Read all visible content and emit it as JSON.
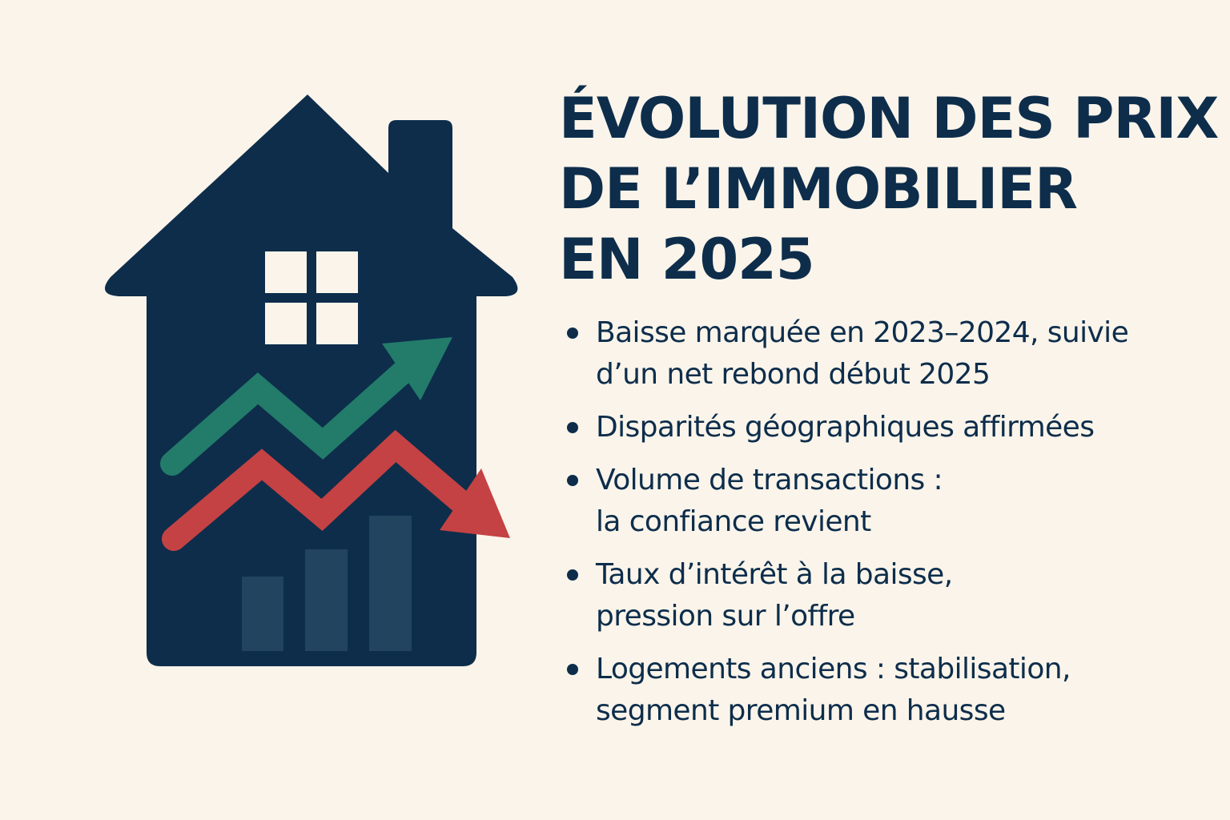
{
  "title": {
    "line1": "ÉVOLUTION DES PRIX",
    "line2": "DE L’IMMOBILIER",
    "line3": "EN 2025"
  },
  "bullets": [
    {
      "line1": "Baisse marquée en 2023–2024, suivie",
      "line2": "d’un net rebond début 2025"
    },
    {
      "line1": "Disparités géographiques affirmées",
      "line2": ""
    },
    {
      "line1": "Volume de transactions :",
      "line2": "la confiance revient"
    },
    {
      "line1": "Taux d’intérêt à la baisse,",
      "line2": "pression sur l’offre"
    },
    {
      "line1": "Logements anciens : stabilisation,",
      "line2": "segment premium en hausse"
    }
  ],
  "colors": {
    "background": "#faf4ea",
    "navy": "#0d2d4b",
    "green_arrow": "#237b6a",
    "red_arrow": "#c44243",
    "bars": "#23445f",
    "window": "#faf4ea"
  },
  "icons": {
    "house": "house-icon",
    "window": "window-icon",
    "up_arrow": "trend-up-arrow-icon",
    "down_arrow": "trend-down-arrow-icon",
    "bars": "bar-chart-icon"
  }
}
